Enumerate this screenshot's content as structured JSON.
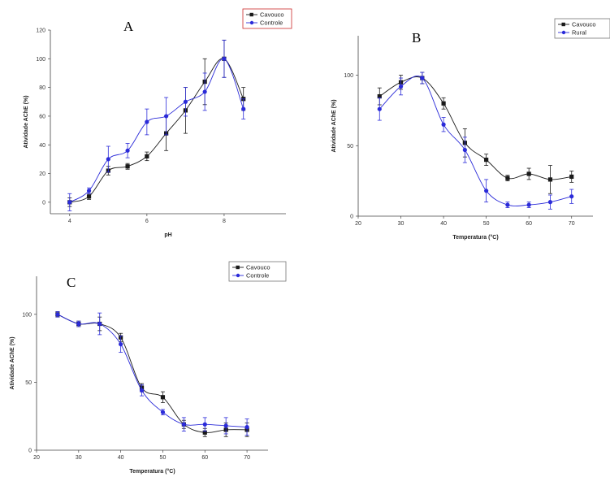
{
  "colors": {
    "black_series": "#1a1a1a",
    "blue_series": "#2b2bd9",
    "red_frame": "#cc2a2a"
  },
  "chart_data": [
    {
      "type": "line",
      "panel_label": "A",
      "xlabel": "pH",
      "ylabel": "Atividade AChE (%)",
      "xlim": [
        3.5,
        9.6
      ],
      "ylim": [
        -8,
        120
      ],
      "x_ticks": [
        4,
        6,
        8
      ],
      "y_ticks": [
        0,
        20,
        40,
        60,
        80,
        100,
        120
      ],
      "x_tick_labels": [
        "4",
        "6",
        "8"
      ],
      "y_tick_labels": [
        "0",
        "20",
        "40",
        "60",
        "80",
        "100",
        "120"
      ],
      "legend": "top-right",
      "grid": false,
      "series": [
        {
          "name": "Cavouco",
          "color": "#1a1a1a",
          "marker": "square",
          "points": [
            [
              4.0,
              0
            ],
            [
              4.5,
              4
            ],
            [
              5.0,
              22
            ],
            [
              5.5,
              25
            ],
            [
              6.0,
              32
            ],
            [
              6.5,
              48
            ],
            [
              7.0,
              64
            ],
            [
              7.5,
              84
            ],
            [
              8.0,
              100
            ],
            [
              8.5,
              72
            ]
          ],
          "err": [
            3,
            2,
            3,
            2,
            3,
            12,
            16,
            16,
            13,
            8
          ]
        },
        {
          "name": "Controle",
          "color": "#2b2bd9",
          "marker": "circle",
          "points": [
            [
              4.0,
              0
            ],
            [
              4.5,
              8
            ],
            [
              5.0,
              30
            ],
            [
              5.5,
              36
            ],
            [
              6.0,
              56
            ],
            [
              6.5,
              60
            ],
            [
              7.0,
              70
            ],
            [
              7.5,
              77
            ],
            [
              8.0,
              100
            ],
            [
              8.5,
              65
            ]
          ],
          "err": [
            6,
            2,
            9,
            5,
            9,
            13,
            10,
            13,
            13,
            7
          ]
        }
      ]
    },
    {
      "type": "line",
      "panel_label": "B",
      "xlabel": "Temperatura (°C)",
      "ylabel": "Atividade AChE (%)",
      "xlim": [
        20,
        75
      ],
      "ylim": [
        0,
        128
      ],
      "x_ticks": [
        20,
        30,
        40,
        50,
        60,
        70
      ],
      "y_ticks": [
        0,
        50,
        100
      ],
      "x_tick_labels": [
        "20",
        "30",
        "40",
        "50",
        "60",
        "70"
      ],
      "y_tick_labels": [
        "0",
        "50",
        "100"
      ],
      "legend": "top-right",
      "grid": false,
      "series": [
        {
          "name": "Cavouco",
          "color": "#1a1a1a",
          "marker": "square",
          "points": [
            [
              25,
              85
            ],
            [
              30,
              95
            ],
            [
              35,
              98
            ],
            [
              40,
              80
            ],
            [
              45,
              52
            ],
            [
              50,
              40
            ],
            [
              55,
              27
            ],
            [
              60,
              30
            ],
            [
              65,
              26
            ],
            [
              70,
              28
            ]
          ],
          "err": [
            6,
            5,
            4,
            4,
            10,
            4,
            2,
            4,
            10,
            4
          ]
        },
        {
          "name": "Rural",
          "color": "#2b2bd9",
          "marker": "circle",
          "points": [
            [
              25,
              76
            ],
            [
              30,
              92
            ],
            [
              35,
              98
            ],
            [
              40,
              65
            ],
            [
              45,
              47
            ],
            [
              50,
              18
            ],
            [
              55,
              8
            ],
            [
              60,
              8
            ],
            [
              65,
              10
            ],
            [
              70,
              14
            ]
          ],
          "err": [
            8,
            6,
            4,
            5,
            9,
            8,
            2,
            2,
            5,
            5
          ]
        }
      ]
    },
    {
      "type": "line",
      "panel_label": "C",
      "xlabel": "Temperatura (°C)",
      "ylabel": "Atividade AChE (%)",
      "xlim": [
        20,
        75
      ],
      "ylim": [
        0,
        128
      ],
      "x_ticks": [
        20,
        30,
        40,
        50,
        60,
        70
      ],
      "y_ticks": [
        0,
        50,
        100
      ],
      "x_tick_labels": [
        "20",
        "30",
        "40",
        "50",
        "60",
        "70"
      ],
      "y_tick_labels": [
        "0",
        "50",
        "100"
      ],
      "legend": "top-right",
      "grid": false,
      "series": [
        {
          "name": "Cavouco",
          "color": "#1a1a1a",
          "marker": "square",
          "points": [
            [
              25,
              100
            ],
            [
              30,
              93
            ],
            [
              35,
              93
            ],
            [
              40,
              83
            ],
            [
              45,
              46
            ],
            [
              50,
              39
            ],
            [
              55,
              19
            ],
            [
              60,
              13
            ],
            [
              65,
              15
            ],
            [
              70,
              15
            ]
          ],
          "err": [
            2,
            2,
            5,
            3,
            3,
            4,
            3,
            3,
            5,
            5
          ]
        },
        {
          "name": "Controle",
          "color": "#2b2bd9",
          "marker": "circle",
          "points": [
            [
              25,
              100
            ],
            [
              30,
              93
            ],
            [
              35,
              93
            ],
            [
              40,
              78
            ],
            [
              45,
              44
            ],
            [
              50,
              28
            ],
            [
              55,
              19
            ],
            [
              60,
              19
            ],
            [
              65,
              18
            ],
            [
              70,
              17
            ]
          ],
          "err": [
            2,
            2,
            8,
            6,
            4,
            2,
            5,
            5,
            6,
            6
          ]
        }
      ]
    }
  ]
}
